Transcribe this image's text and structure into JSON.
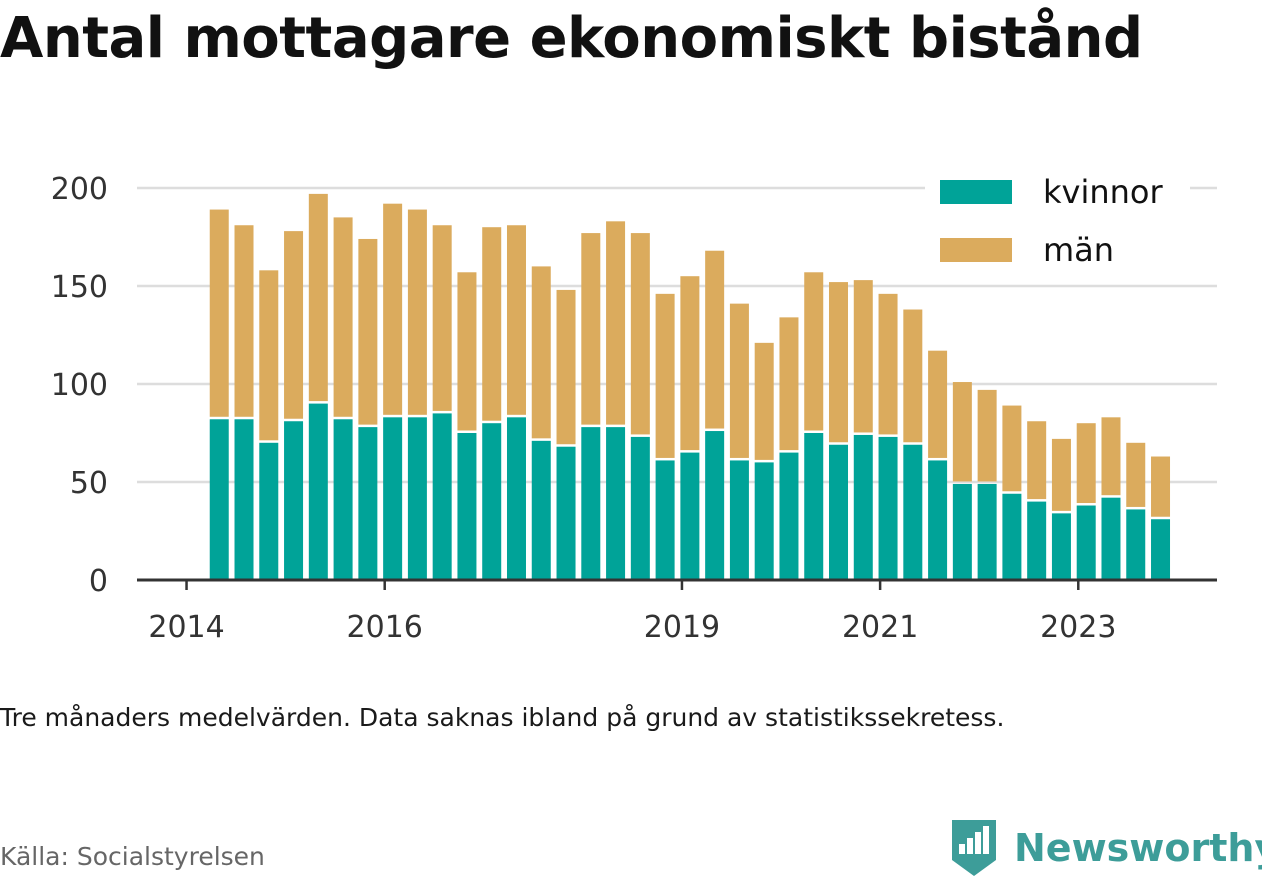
{
  "title": "Antal mottagare ekonomiskt bistånd",
  "note": "Tre månaders medelvärden. Data saknas ibland på grund av statistikssekretess.",
  "source": "Källa: Socialstyrelsen",
  "brand": {
    "name": "Newsworthy",
    "color": "#3d9d99",
    "logo_icon": "bar-chart-logo-icon"
  },
  "chart_data": {
    "type": "bar",
    "stacked": true,
    "title": "Antal mottagare ekonomiskt bistånd",
    "xlabel": "",
    "ylabel": "",
    "ylim": [
      0,
      200
    ],
    "y_ticks": [
      0,
      50,
      100,
      150,
      200
    ],
    "grid": true,
    "legend_position": "top-right",
    "x_ticks": [
      {
        "label": "2014",
        "at": 2014.0
      },
      {
        "label": "2016",
        "at": 2016.0
      },
      {
        "label": "2019",
        "at": 2019.0
      },
      {
        "label": "2021",
        "at": 2021.0
      },
      {
        "label": "2023",
        "at": 2023.0
      }
    ],
    "x_range": [
      2013.5,
      2024.4
    ],
    "x": [
      2014.33,
      2014.58,
      2014.83,
      2015.08,
      2015.33,
      2015.58,
      2015.83,
      2016.08,
      2016.33,
      2016.58,
      2016.83,
      2017.08,
      2017.33,
      2017.58,
      2017.83,
      2018.08,
      2018.33,
      2018.58,
      2018.83,
      2019.08,
      2019.33,
      2019.58,
      2019.83,
      2020.08,
      2020.33,
      2020.58,
      2020.83,
      2021.08,
      2021.33,
      2021.58,
      2021.83,
      2022.08,
      2022.33,
      2022.58,
      2022.83,
      2023.08,
      2023.33,
      2023.58,
      2023.83
    ],
    "series": [
      {
        "name": "kvinnor",
        "color": "#00a398",
        "values": [
          82,
          82,
          70,
          81,
          90,
          82,
          78,
          83,
          83,
          85,
          75,
          80,
          83,
          71,
          68,
          78,
          78,
          73,
          61,
          65,
          76,
          61,
          60,
          65,
          75,
          69,
          74,
          73,
          69,
          61,
          49,
          49,
          44,
          40,
          34,
          38,
          42,
          36,
          31
        ]
      },
      {
        "name": "män",
        "color": "#dbab5d",
        "values": [
          107,
          99,
          88,
          97,
          107,
          103,
          96,
          109,
          106,
          96,
          82,
          100,
          98,
          89,
          80,
          99,
          105,
          104,
          85,
          90,
          92,
          80,
          61,
          69,
          82,
          83,
          79,
          73,
          69,
          56,
          52,
          48,
          45,
          41,
          38,
          42,
          41,
          34,
          32
        ]
      }
    ]
  }
}
